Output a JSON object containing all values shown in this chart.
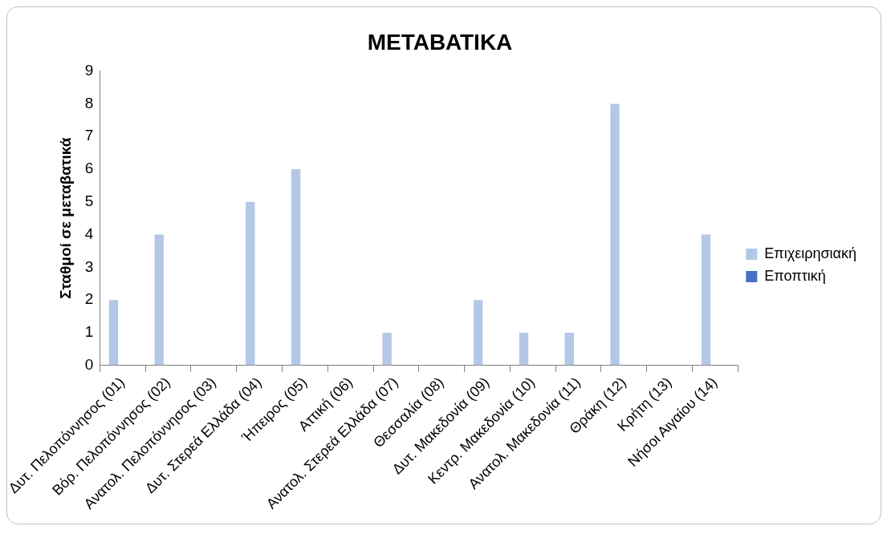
{
  "chart_data": {
    "type": "bar",
    "title": "ΜΕΤΑΒΑΤΙΚΑ",
    "ylabel": "Σταθμοί σε μεταβατικά",
    "categories": [
      "Δυτ. Πελοπόννησος (01)",
      "Βόρ. Πελοπόννησος (02)",
      "Ανατολ. Πελοπόννησος (03)",
      "Δυτ. Στερεά Ελλάδα (04)",
      "Ήπειρος (05)",
      "Αττική (06)",
      "Ανατολ. Στερεά Ελλάδα (07)",
      "Θεσσαλία (08)",
      "Δυτ. Μακεδονία (09)",
      "Κεντρ. Μακεδονία (10)",
      "Ανατολ. Μακεδονία (11)",
      "Θράκη (12)",
      "Κρήτη (13)",
      "Νήσοι Αιγαίου (14)"
    ],
    "series": [
      {
        "name": "Επιχειρησιακή",
        "color": "#b4c7e7",
        "values": [
          2,
          4,
          0,
          5,
          6,
          0,
          1,
          0,
          2,
          1,
          1,
          8,
          0,
          4
        ]
      },
      {
        "name": "Εποπτική",
        "color": "#4472c4",
        "values": [
          0,
          0,
          0,
          0,
          0,
          0,
          0,
          0,
          0,
          0,
          0,
          0,
          0,
          0
        ]
      }
    ],
    "ylim": [
      0,
      9
    ],
    "yticks": [
      0,
      1,
      2,
      3,
      4,
      5,
      6,
      7,
      8,
      9
    ],
    "grid": false,
    "legend": "right"
  }
}
